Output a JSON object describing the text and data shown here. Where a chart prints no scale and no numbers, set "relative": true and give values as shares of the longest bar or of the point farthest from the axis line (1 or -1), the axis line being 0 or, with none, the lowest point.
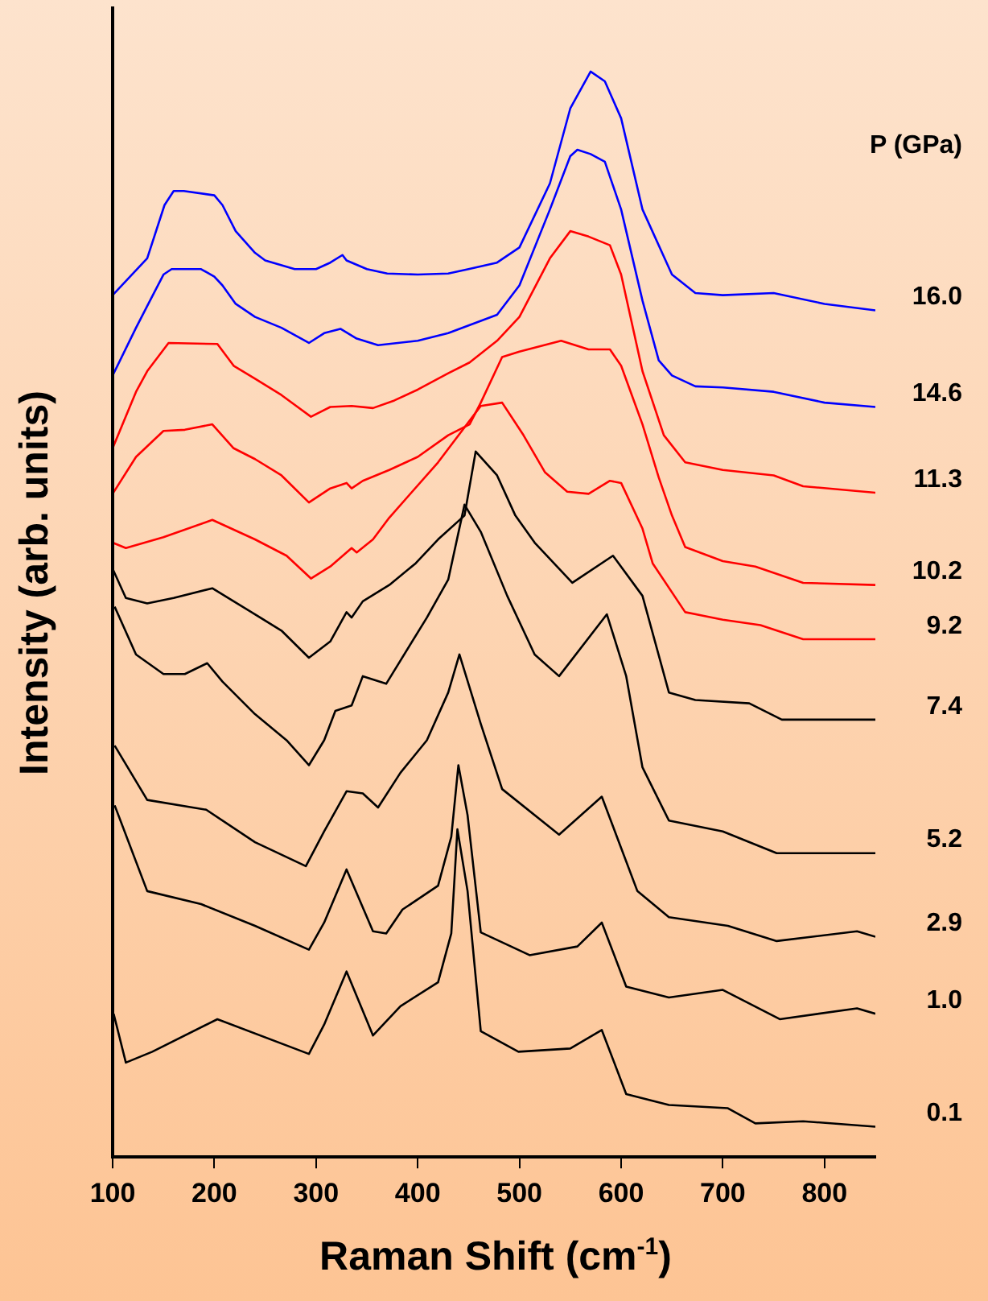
{
  "chart_data": {
    "type": "line",
    "xlabel": "Raman Shift (cm$^{-1}$)",
    "ylabel": "Intensity (arb. units)",
    "legend_title": "P (GPa)",
    "relative": true,
    "xlim": [
      100,
      850
    ],
    "xticks": [
      100,
      200,
      300,
      400,
      500,
      600,
      700,
      800
    ],
    "grid": false,
    "legend": false,
    "marker": "none",
    "line_style": "solid",
    "series": [
      {
        "name": "16.0",
        "color": "#0000ff",
        "x": [
          100,
          134,
          151,
          160,
          170,
          200,
          208,
          221,
          240,
          250,
          279,
          300,
          314,
          326,
          330,
          350,
          370,
          400,
          430,
          450,
          478,
          500,
          530,
          550,
          570,
          584,
          600,
          621,
          650,
          673,
          700,
          750,
          800,
          850
        ],
        "values": [
          0.794,
          0.828,
          0.877,
          0.89,
          0.89,
          0.886,
          0.877,
          0.853,
          0.833,
          0.826,
          0.818,
          0.818,
          0.824,
          0.831,
          0.826,
          0.818,
          0.814,
          0.813,
          0.814,
          0.818,
          0.824,
          0.838,
          0.897,
          0.966,
          1.0,
          0.991,
          0.957,
          0.873,
          0.813,
          0.796,
          0.794,
          0.796,
          0.786,
          0.78
        ]
      },
      {
        "name": "14.6",
        "color": "#0000ff",
        "x": [
          100,
          123,
          134,
          150,
          158,
          187,
          200,
          208,
          221,
          240,
          266,
          293,
          308,
          324,
          340,
          361,
          400,
          430,
          478,
          500,
          530,
          550,
          557,
          570,
          584,
          600,
          621,
          637,
          650,
          673,
          700,
          750,
          800,
          850
        ],
        "values": [
          0.72,
          0.764,
          0.784,
          0.813,
          0.818,
          0.818,
          0.811,
          0.803,
          0.786,
          0.774,
          0.764,
          0.75,
          0.759,
          0.763,
          0.754,
          0.748,
          0.752,
          0.759,
          0.776,
          0.803,
          0.873,
          0.922,
          0.928,
          0.924,
          0.917,
          0.873,
          0.789,
          0.734,
          0.72,
          0.71,
          0.709,
          0.705,
          0.695,
          0.691
        ]
      },
      {
        "name": "11.3",
        "color": "#ff0000",
        "x": [
          100,
          123,
          134,
          155,
          203,
          219,
          240,
          266,
          295,
          314,
          335,
          356,
          377,
          400,
          430,
          451,
          478,
          500,
          530,
          550,
          568,
          589,
          600,
          621,
          642,
          663,
          700,
          750,
          779,
          850
        ],
        "values": [
          0.653,
          0.705,
          0.724,
          0.75,
          0.749,
          0.729,
          0.717,
          0.702,
          0.682,
          0.691,
          0.692,
          0.69,
          0.697,
          0.707,
          0.722,
          0.732,
          0.752,
          0.774,
          0.828,
          0.853,
          0.848,
          0.84,
          0.813,
          0.724,
          0.665,
          0.64,
          0.633,
          0.628,
          0.618,
          0.612
        ]
      },
      {
        "name": "10.2",
        "color": "#ff0000",
        "x": [
          100,
          123,
          150,
          171,
          198,
          219,
          240,
          266,
          293,
          314,
          330,
          335,
          346,
          372,
          400,
          430,
          451,
          462,
          483,
          500,
          541,
          568,
          589,
          600,
          621,
          637,
          650,
          663,
          700,
          732,
          779,
          850
        ],
        "values": [
          0.611,
          0.645,
          0.669,
          0.67,
          0.675,
          0.653,
          0.643,
          0.628,
          0.603,
          0.616,
          0.621,
          0.616,
          0.623,
          0.633,
          0.645,
          0.665,
          0.675,
          0.695,
          0.737,
          0.742,
          0.752,
          0.744,
          0.744,
          0.729,
          0.675,
          0.626,
          0.591,
          0.562,
          0.549,
          0.544,
          0.529,
          0.527
        ]
      },
      {
        "name": "9.2",
        "color": "#ff0000",
        "x": [
          100,
          113,
          150,
          198,
          240,
          271,
          295,
          314,
          335,
          340,
          356,
          372,
          420,
          462,
          483,
          504,
          525,
          547,
          568,
          589,
          600,
          621,
          631,
          663,
          700,
          737,
          779,
          850
        ],
        "values": [
          0.566,
          0.561,
          0.571,
          0.587,
          0.569,
          0.554,
          0.533,
          0.544,
          0.561,
          0.557,
          0.569,
          0.589,
          0.64,
          0.692,
          0.695,
          0.665,
          0.631,
          0.613,
          0.611,
          0.623,
          0.621,
          0.579,
          0.547,
          0.502,
          0.495,
          0.49,
          0.477,
          0.477
        ]
      },
      {
        "name": "7.4",
        "color": "#000000",
        "x": [
          100,
          113,
          134,
          160,
          198,
          219,
          240,
          266,
          293,
          314,
          330,
          335,
          346,
          372,
          398,
          420,
          446,
          457,
          478,
          496,
          515,
          552,
          592,
          621,
          647,
          673,
          726,
          758,
          850
        ],
        "values": [
          0.542,
          0.515,
          0.51,
          0.515,
          0.524,
          0.512,
          0.5,
          0.485,
          0.46,
          0.475,
          0.502,
          0.497,
          0.512,
          0.527,
          0.547,
          0.569,
          0.591,
          0.65,
          0.628,
          0.591,
          0.566,
          0.529,
          0.554,
          0.517,
          0.428,
          0.421,
          0.418,
          0.403,
          0.403
        ]
      },
      {
        "name": "5.2",
        "color": "#000000",
        "x": [
          102,
          123,
          150,
          171,
          193,
          208,
          240,
          271,
          293,
          308,
          319,
          335,
          346,
          369,
          409,
          430,
          446,
          462,
          488,
          515,
          539,
          586,
          605,
          621,
          647,
          700,
          753,
          850
        ],
        "values": [
          0.507,
          0.463,
          0.445,
          0.445,
          0.455,
          0.438,
          0.408,
          0.384,
          0.361,
          0.384,
          0.411,
          0.416,
          0.443,
          0.436,
          0.497,
          0.532,
          0.601,
          0.576,
          0.517,
          0.463,
          0.443,
          0.5,
          0.443,
          0.359,
          0.31,
          0.3,
          0.28,
          0.28
        ]
      },
      {
        "name": "2.9",
        "color": "#000000",
        "x": [
          102,
          134,
          192,
          240,
          290,
          308,
          330,
          346,
          361,
          383,
          409,
          430,
          441,
          462,
          483,
          539,
          581,
          616,
          647,
          705,
          753,
          832,
          850
        ],
        "values": [
          0.379,
          0.329,
          0.32,
          0.29,
          0.268,
          0.3,
          0.337,
          0.335,
          0.322,
          0.354,
          0.384,
          0.428,
          0.463,
          0.399,
          0.339,
          0.297,
          0.332,
          0.245,
          0.221,
          0.213,
          0.199,
          0.208,
          0.203
        ]
      },
      {
        "name": "1.0",
        "color": "#000000",
        "x": [
          102,
          134,
          187,
          240,
          293,
          308,
          330,
          356,
          369,
          385,
          420,
          433,
          440,
          449,
          462,
          510,
          557,
          581,
          605,
          647,
          700,
          756,
          832,
          850
        ],
        "values": [
          0.324,
          0.245,
          0.233,
          0.213,
          0.191,
          0.216,
          0.265,
          0.208,
          0.206,
          0.228,
          0.25,
          0.295,
          0.361,
          0.315,
          0.207,
          0.186,
          0.194,
          0.216,
          0.157,
          0.147,
          0.154,
          0.127,
          0.137,
          0.132
        ]
      },
      {
        "name": "0.1",
        "color": "#000000",
        "x": [
          101,
          113,
          139,
          203,
          293,
          308,
          330,
          356,
          383,
          420,
          433,
          439,
          449,
          462,
          499,
          550,
          581,
          605,
          647,
          705,
          732,
          779,
          850
        ],
        "values": [
          0.132,
          0.087,
          0.097,
          0.127,
          0.095,
          0.122,
          0.171,
          0.112,
          0.139,
          0.161,
          0.206,
          0.302,
          0.245,
          0.116,
          0.097,
          0.1,
          0.117,
          0.058,
          0.048,
          0.045,
          0.031,
          0.033,
          0.028
        ]
      }
    ]
  }
}
